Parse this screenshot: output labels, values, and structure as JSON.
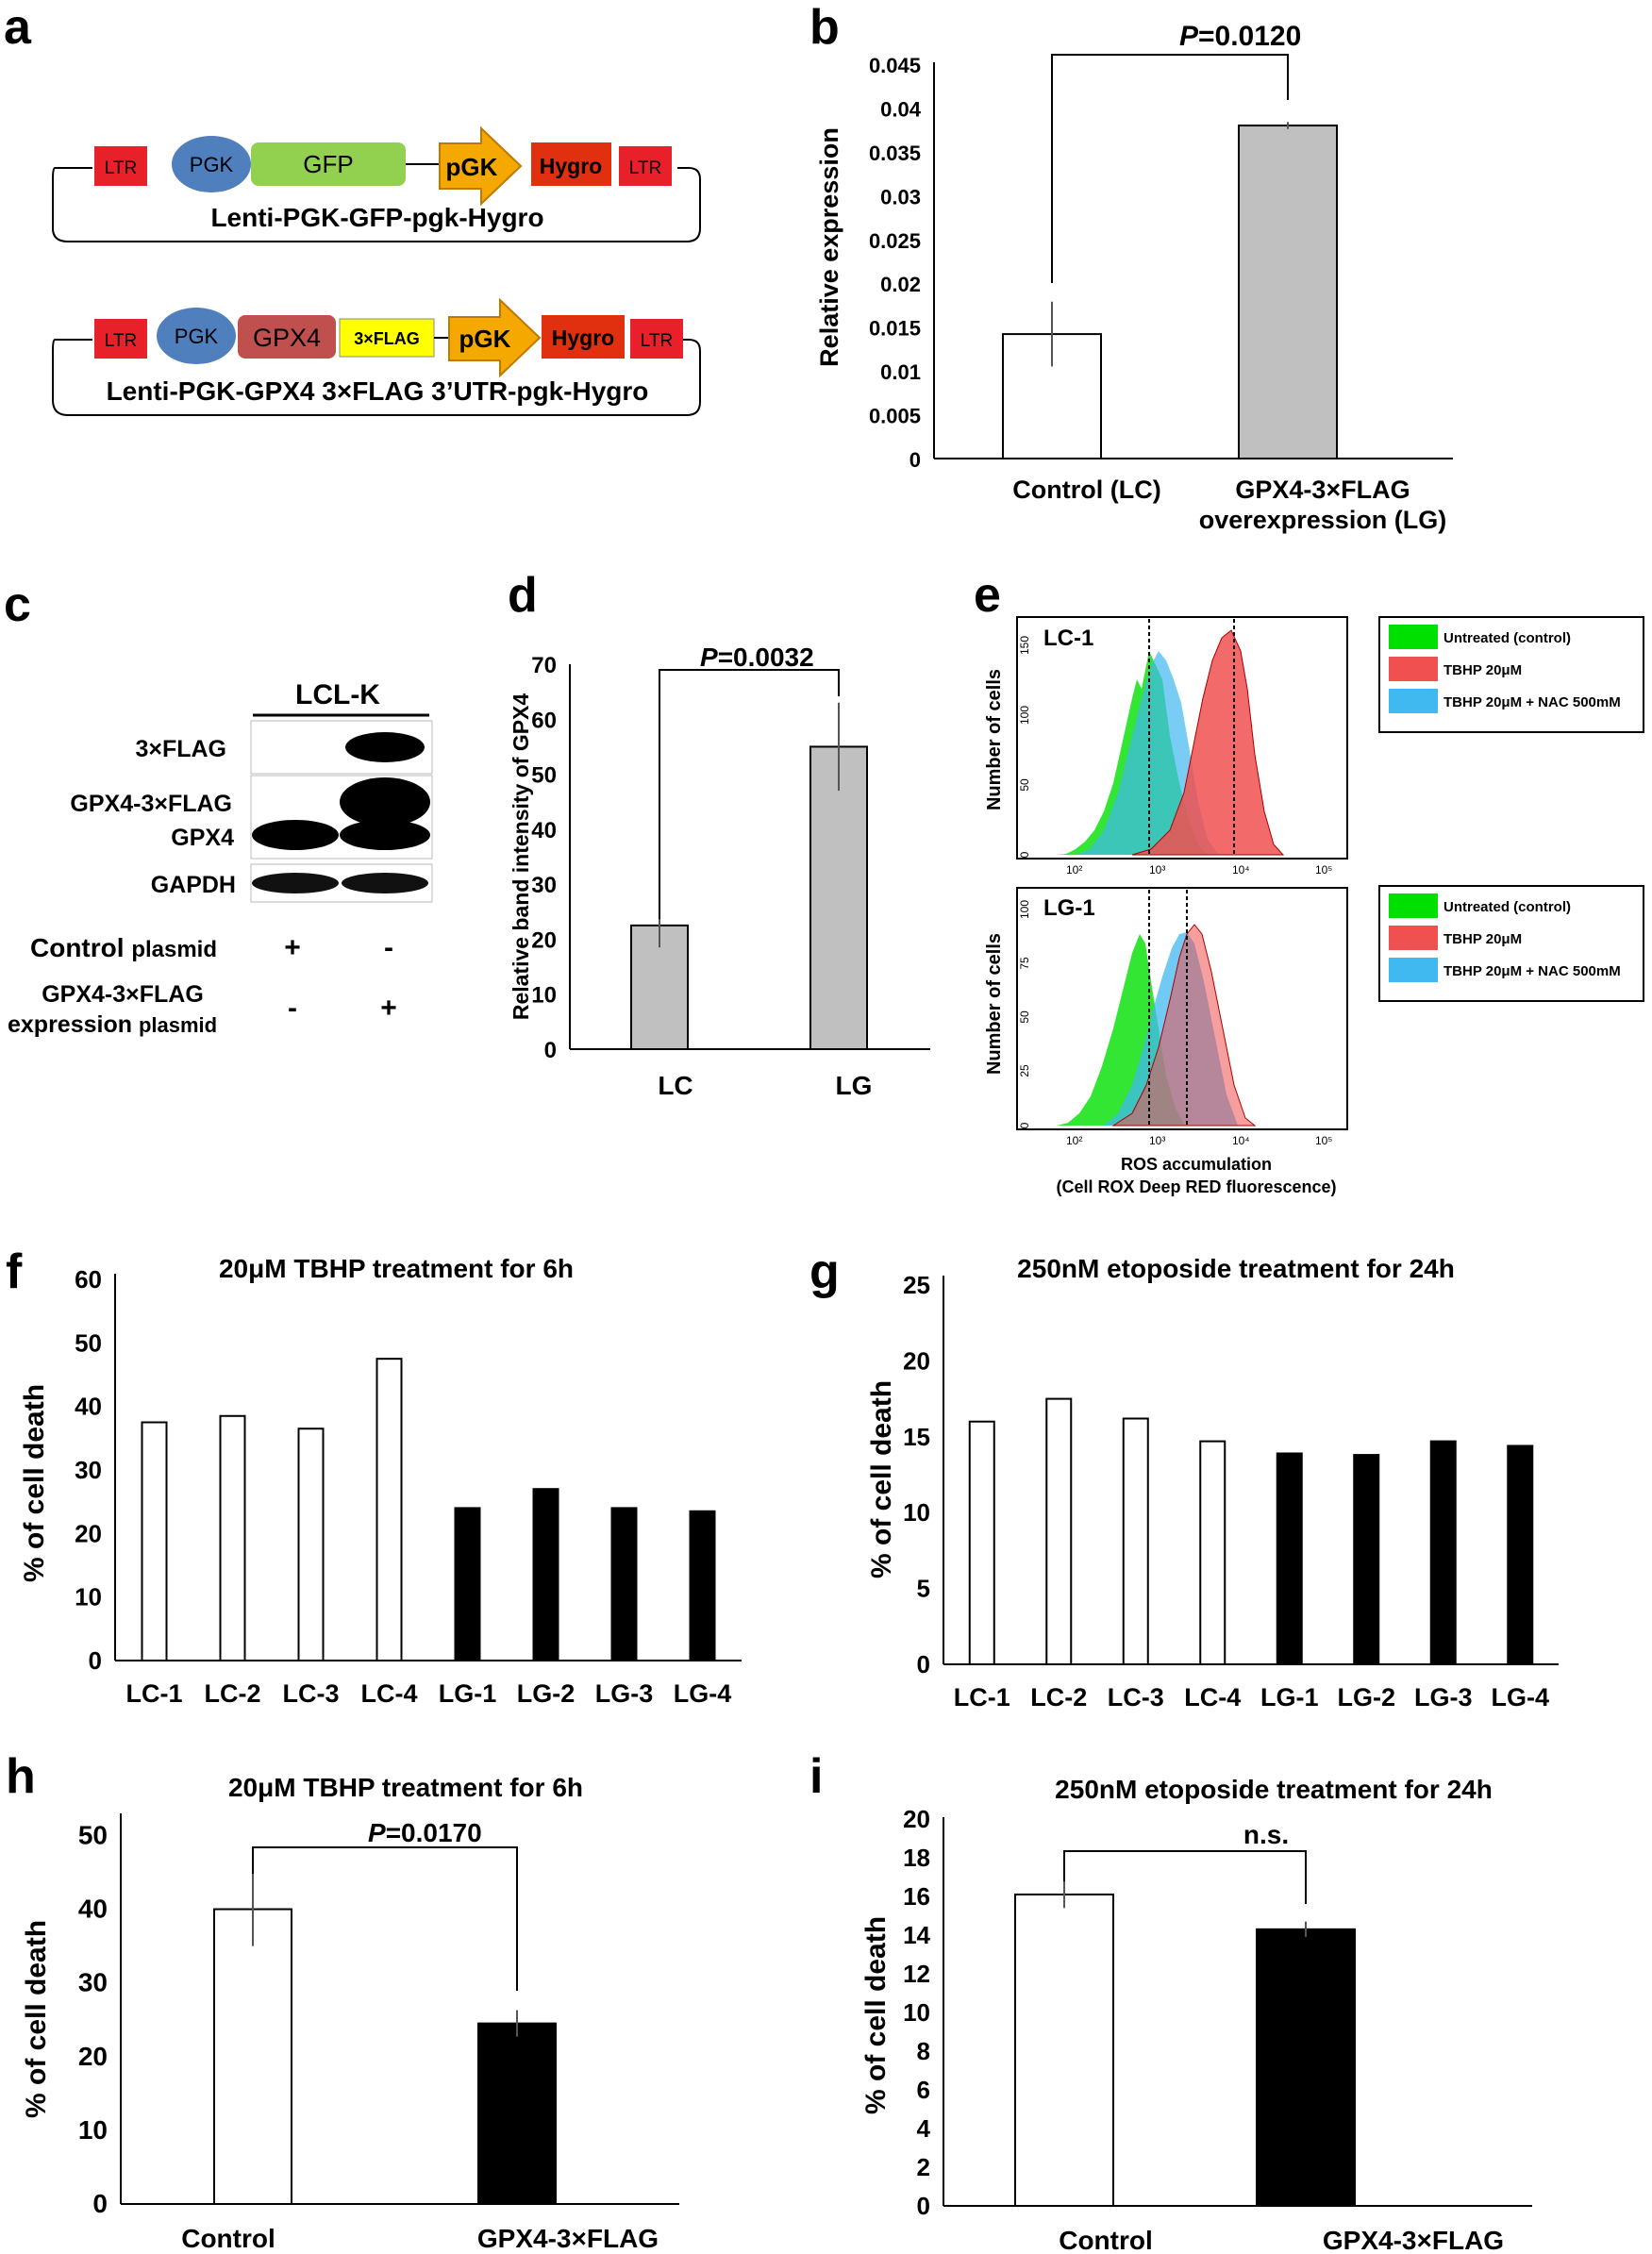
{
  "panel_labels": {
    "a": "a",
    "b": "b",
    "c": "c",
    "d": "d",
    "e": "e",
    "f": "f",
    "g": "g",
    "h": "h",
    "i": "i"
  },
  "constructs": [
    {
      "name": "Lenti-PGK-GFP-pgk-Hygro",
      "parts": [
        "LTR",
        "PGK",
        "GFP",
        "pGK",
        "Hygro",
        "LTR"
      ]
    },
    {
      "name": "Lenti-PGK-GPX4 3×FLAG 3’UTR-pgk-Hygro",
      "parts": [
        "LTR",
        "PGK",
        "GPX4",
        "3×FLAG",
        "pGK",
        "Hygro",
        "LTR"
      ]
    }
  ],
  "colors": {
    "ltr": "#e8202a",
    "pgk_promoter": "#4f7fbd",
    "gfp": "#92d050",
    "gpx4": "#c0504d",
    "flag": "#ffff00",
    "pgk_arrow": "#f5a800",
    "hygro": "#e03010",
    "bar_grey": "#c0c0c0",
    "bar_black": "#000000",
    "hist_green": "#00e000",
    "hist_red": "#f05050",
    "hist_blue": "#40b8f0"
  },
  "blot": {
    "title": "LCL-K",
    "rows": [
      "3×FLAG",
      "GPX4-3×FLAG",
      "GPX4",
      "GAPDH"
    ],
    "condition_rows": [
      {
        "label": "Control",
        "suffix": "plasmid",
        "values": [
          "+",
          "-"
        ]
      },
      {
        "label": "GPX4-3×FLAG",
        "label2": "expression",
        "suffix": "plasmid",
        "values": [
          "-",
          "+"
        ]
      }
    ]
  },
  "flow": {
    "panels": [
      {
        "label": "LC-1",
        "ylabel": "Number of cells",
        "yticks": [
          "0",
          "50",
          "100",
          "150"
        ]
      },
      {
        "label": "LG-1",
        "ylabel": "Number of cells",
        "yticks": [
          "0",
          "25",
          "50",
          "75",
          "100"
        ]
      }
    ],
    "xticks": [
      "10²",
      "10³",
      "10⁴",
      "10⁵"
    ],
    "xlabel": "ROS accumulation",
    "xlabel2": "(Cell ROX Deep RED fluorescence)",
    "legend": [
      "Untreated (control)",
      "TBHP 20μM",
      "TBHP 20μM + NAC 500mM"
    ]
  },
  "chart_data": [
    {
      "panel": "b",
      "type": "bar",
      "categories": [
        "Control (LC)",
        "GPX4-3×FLAG overexpression (LG)"
      ],
      "values": [
        0.0142,
        0.038
      ],
      "errors": [
        0.0037,
        0.0004
      ],
      "ylabel": "Relative expression",
      "ylim": [
        0,
        0.045
      ],
      "yticks": [
        "0",
        "0.005",
        "0.01",
        "0.015",
        "0.02",
        "0.025",
        "0.03",
        "0.035",
        "0.04",
        "0.045"
      ],
      "pvalue_prefix": "P",
      "pvalue": "=0.0120"
    },
    {
      "panel": "d",
      "type": "bar",
      "categories": [
        "LC",
        "LG"
      ],
      "values": [
        22.5,
        55
      ],
      "errors": [
        4,
        8
      ],
      "ylabel": "Relative band intensity of GPX4",
      "ylim": [
        0,
        70
      ],
      "yticks": [
        "0",
        "10",
        "20",
        "30",
        "40",
        "50",
        "60",
        "70"
      ],
      "pvalue_prefix": "P",
      "pvalue": "=0.0032"
    },
    {
      "panel": "f",
      "type": "bar",
      "title": "20μM TBHP treatment for 6h",
      "categories": [
        "LC-1",
        "LC-2",
        "LC-3",
        "LC-4",
        "LG-1",
        "LG-2",
        "LG-3",
        "LG-4"
      ],
      "values": [
        37.5,
        38.5,
        36.5,
        47.5,
        24,
        27,
        24,
        23.5
      ],
      "ylabel": "% of cell death",
      "ylim": [
        0,
        60
      ],
      "yticks": [
        "0",
        "10",
        "20",
        "30",
        "40",
        "50",
        "60"
      ]
    },
    {
      "panel": "g",
      "type": "bar",
      "title": "250nM etoposide treatment for 24h",
      "categories": [
        "LC-1",
        "LC-2",
        "LC-3",
        "LC-4",
        "LG-1",
        "LG-2",
        "LG-3",
        "LG-4"
      ],
      "values": [
        16,
        17.5,
        16.2,
        14.7,
        13.9,
        13.8,
        14.7,
        14.4
      ],
      "ylabel": "% of cell death",
      "ylim": [
        0,
        25
      ],
      "yticks": [
        "0",
        "5",
        "10",
        "15",
        "20",
        "25"
      ]
    },
    {
      "panel": "h",
      "type": "bar",
      "title": "20μM TBHP treatment for 6h",
      "categories": [
        "Control",
        "GPX4-3×FLAG"
      ],
      "values": [
        40,
        24.5
      ],
      "errors": [
        5,
        1.8
      ],
      "ylabel": "% of cell death",
      "ylim": [
        0,
        53
      ],
      "yticks": [
        "0",
        "10",
        "20",
        "30",
        "40",
        "50"
      ],
      "pvalue_prefix": "P",
      "pvalue": "=0.0170"
    },
    {
      "panel": "i",
      "type": "bar",
      "title": "250nM etoposide treatment for 24h",
      "categories": [
        "Control",
        "GPX4-3×FLAG"
      ],
      "values": [
        16.1,
        14.3
      ],
      "errors": [
        0.7,
        0.4
      ],
      "ylabel": "% of cell death",
      "ylim": [
        0,
        20
      ],
      "yticks": [
        "0",
        "2",
        "4",
        "6",
        "8",
        "10",
        "12",
        "14",
        "16",
        "18",
        "20"
      ],
      "significance": "n.s."
    }
  ]
}
